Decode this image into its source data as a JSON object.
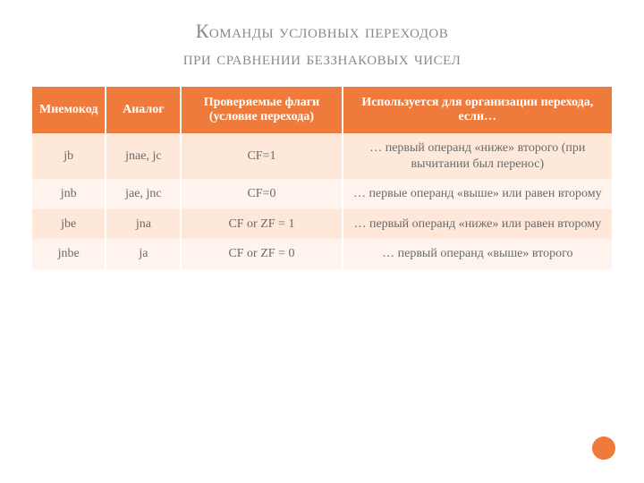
{
  "colors": {
    "title_text": "#8a8a8a",
    "header_bg": "#ee7b3c",
    "header_text": "#ffffff",
    "row_odd_bg": "#fde8da",
    "row_even_bg": "#fef4ed",
    "cell_text": "#6a6a6a",
    "dot_bg": "#ee7b3c"
  },
  "title": {
    "line1": "Команды условных переходов",
    "line2": "при сравнении беззнаковых чисел"
  },
  "table": {
    "columns": [
      "Мнемокод",
      "Аналог",
      "Проверяемые флаги (условие перехода)",
      "Используется для организации перехода, если…"
    ],
    "rows": [
      {
        "mnemo": "jb",
        "analog": "jnae, jc",
        "flags": "CF=1",
        "use": "… первый операнд «ниже» второго (при вычитании был перенос)"
      },
      {
        "mnemo": "jnb",
        "analog": "jae, jnc",
        "flags": "CF=0",
        "use": "… первые операнд «выше» или равен второму"
      },
      {
        "mnemo": "jbe",
        "analog": "jna",
        "flags": "CF or ZF = 1",
        "use": "… первый операнд «ниже» или равен второму"
      },
      {
        "mnemo": "jnbe",
        "analog": "ja",
        "flags": "CF or ZF = 0",
        "use": "… первый операнд «выше» второго"
      }
    ]
  }
}
